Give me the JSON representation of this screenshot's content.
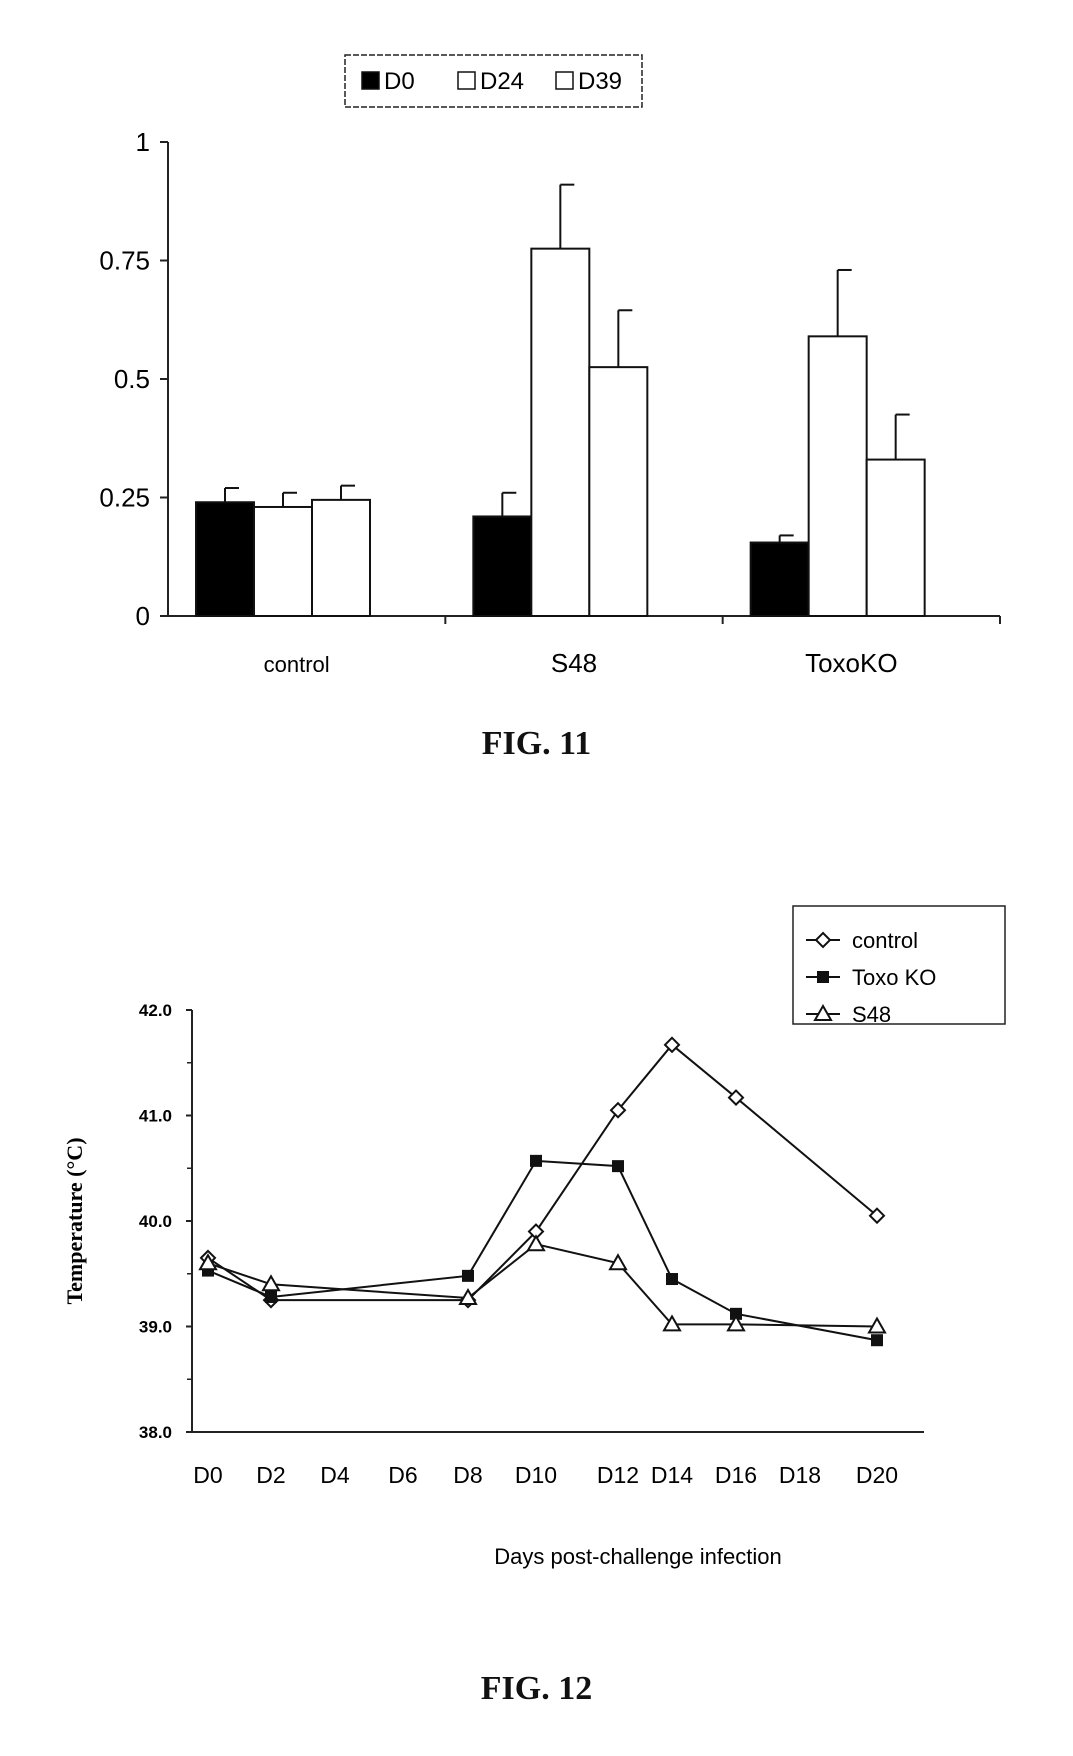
{
  "figures": {
    "fig11_caption": "FIG. 11",
    "fig12_caption": "FIG. 12"
  },
  "chart_data": [
    {
      "type": "bar",
      "categories": [
        "control",
        "S48",
        "ToxoKO"
      ],
      "series": [
        {
          "name": "D0",
          "values": [
            0.24,
            0.21,
            0.155
          ],
          "errors": [
            0.03,
            0.05,
            0.015
          ],
          "fill": "#000000"
        },
        {
          "name": "D24",
          "values": [
            0.23,
            0.775,
            0.59
          ],
          "errors": [
            0.03,
            0.135,
            0.14
          ],
          "fill": "#ffffff"
        },
        {
          "name": "D39",
          "values": [
            0.245,
            0.525,
            0.33
          ],
          "errors": [
            0.03,
            0.12,
            0.095
          ],
          "fill": "#ffffff"
        }
      ],
      "yticks": [
        "0",
        "0.25",
        "0.5",
        "0.75",
        "1"
      ],
      "ylim": [
        0,
        1
      ],
      "legend_position": "top",
      "grid": false
    },
    {
      "type": "line",
      "x_categories": [
        "D0",
        "D2",
        "D4",
        "D6",
        "D8",
        "D10",
        "D12",
        "D14",
        "D16",
        "D18",
        "D20"
      ],
      "series": [
        {
          "name": "control",
          "marker": "diamond-open",
          "x": [
            "D0",
            "D2",
            "D8",
            "D10",
            "D12",
            "D14",
            "D16",
            "D20"
          ],
          "y": [
            39.65,
            39.25,
            39.25,
            39.9,
            41.05,
            41.67,
            41.17,
            40.05
          ]
        },
        {
          "name": "Toxo KO",
          "marker": "square-filled",
          "x": [
            "D0",
            "D2",
            "D8",
            "D10",
            "D12",
            "D14",
            "D16",
            "D20"
          ],
          "y": [
            39.53,
            39.28,
            39.48,
            40.57,
            40.52,
            39.45,
            39.12,
            38.87
          ]
        },
        {
          "name": "S48",
          "marker": "triangle-open",
          "x": [
            "D0",
            "D2",
            "D8",
            "D10",
            "D12",
            "D14",
            "D16",
            "D20"
          ],
          "y": [
            39.6,
            39.4,
            39.27,
            39.78,
            39.6,
            39.02,
            39.02,
            39.0
          ]
        }
      ],
      "yticks": [
        "38.0",
        "39.0",
        "40.0",
        "41.0",
        "42.0"
      ],
      "ylim": [
        38,
        42
      ],
      "ylabel": "Temperature (°C)",
      "xlabel": "Days post-challenge infection",
      "legend_position": "top-right",
      "grid": false
    }
  ]
}
